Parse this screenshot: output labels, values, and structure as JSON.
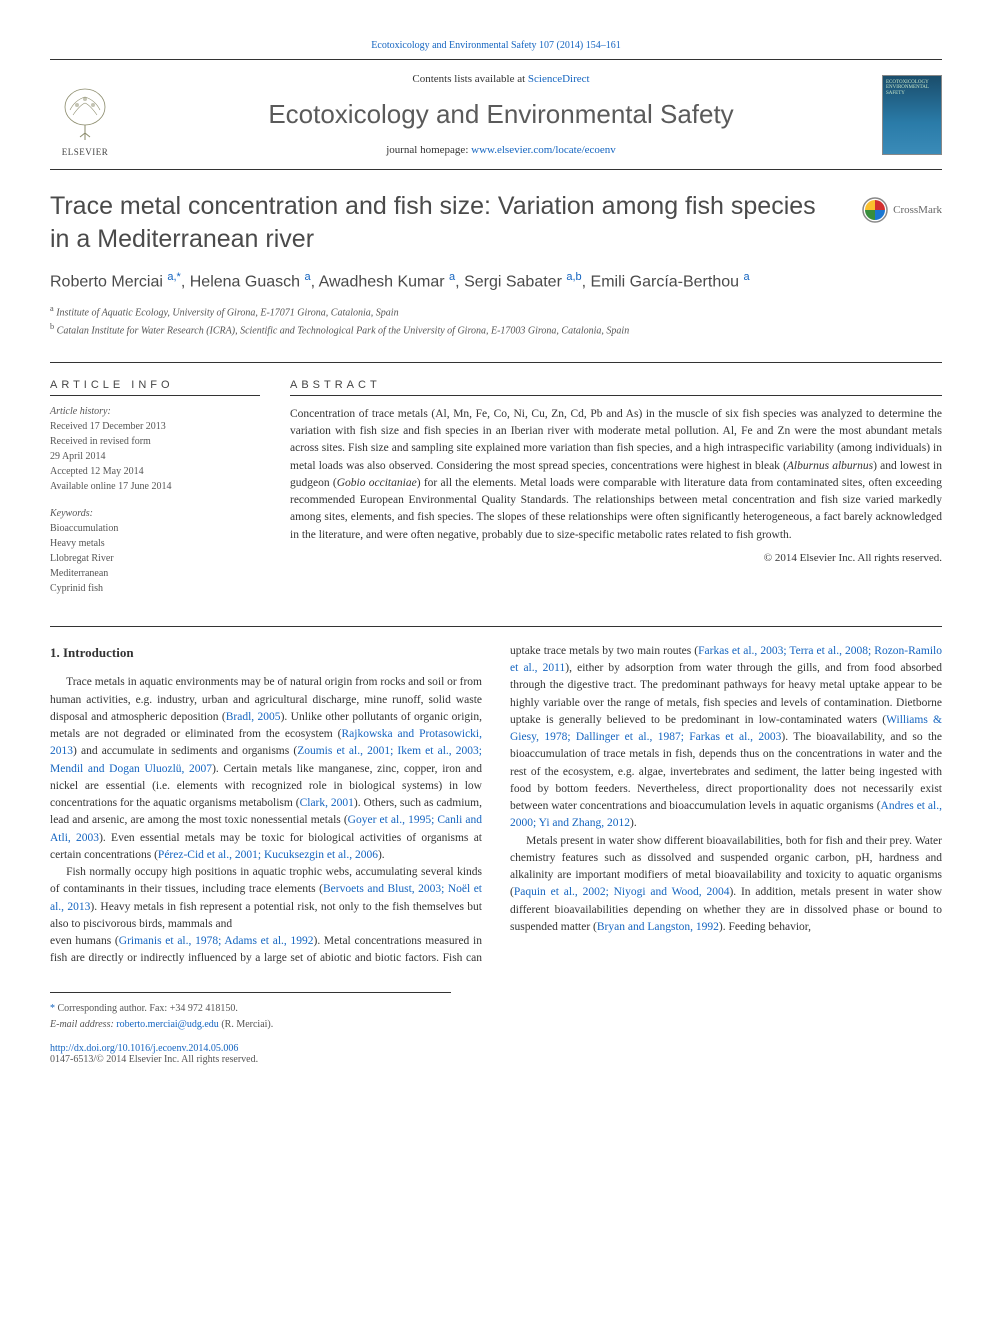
{
  "header": {
    "journal_ref": "Ecotoxicology and Environmental Safety 107 (2014) 154–161",
    "contents_prefix": "Contents lists available at ",
    "contents_link": "ScienceDirect",
    "journal_name": "Ecotoxicology and Environmental Safety",
    "homepage_prefix": "journal homepage: ",
    "homepage_link": "www.elsevier.com/locate/ecoenv",
    "publisher": "ELSEVIER",
    "cover_title": "ECOTOXICOLOGY ENVIRONMENTAL SAFETY",
    "crossmark": "CrossMark"
  },
  "article": {
    "title": "Trace metal concentration and fish size: Variation among fish species in a Mediterranean river",
    "authors_html": "Roberto Merciai <sup>a,*</sup>, Helena Guasch <sup>a</sup>, Awadhesh Kumar <sup>a</sup>, Sergi Sabater <sup>a,b</sup>, Emili García-Berthou <sup>a</sup>",
    "affiliations": [
      "a Institute of Aquatic Ecology, University of Girona, E-17071 Girona, Catalonia, Spain",
      "b Catalan Institute for Water Research (ICRA), Scientific and Technological Park of the University of Girona, E-17003 Girona, Catalonia, Spain"
    ]
  },
  "info": {
    "heading": "ARTICLE INFO",
    "history_label": "Article history:",
    "history": [
      "Received 17 December 2013",
      "Received in revised form",
      "29 April 2014",
      "Accepted 12 May 2014",
      "Available online 17 June 2014"
    ],
    "keywords_label": "Keywords:",
    "keywords": [
      "Bioaccumulation",
      "Heavy metals",
      "Llobregat River",
      "Mediterranean",
      "Cyprinid fish"
    ]
  },
  "abstract": {
    "heading": "ABSTRACT",
    "text": "Concentration of trace metals (Al, Mn, Fe, Co, Ni, Cu, Zn, Cd, Pb and As) in the muscle of six fish species was analyzed to determine the variation with fish size and fish species in an Iberian river with moderate metal pollution. Al, Fe and Zn were the most abundant metals across sites. Fish size and sampling site explained more variation than fish species, and a high intraspecific variability (among individuals) in metal loads was also observed. Considering the most spread species, concentrations were highest in bleak (Alburnus alburnus) and lowest in gudgeon (Gobio occitaniae) for all the elements. Metal loads were comparable with literature data from contaminated sites, often exceeding recommended European Environmental Quality Standards. The relationships between metal concentration and fish size varied markedly among sites, elements, and fish species. The slopes of these relationships were often significantly heterogeneous, a fact barely acknowledged in the literature, and were often negative, probably due to size-specific metabolic rates related to fish growth.",
    "copyright": "© 2014 Elsevier Inc. All rights reserved."
  },
  "body": {
    "section_heading": "1. Introduction",
    "p1": "Trace metals in aquatic environments may be of natural origin from rocks and soil or from human activities, e.g. industry, urban and agricultural discharge, mine runoff, solid waste disposal and atmospheric deposition (Bradl, 2005). Unlike other pollutants of organic origin, metals are not degraded or eliminated from the ecosystem (Rajkowska and Protasowicki, 2013) and accumulate in sediments and organisms (Zoumis et al., 2001; Ikem et al., 2003; Mendil and Dogan Uluozlü, 2007). Certain metals like manganese, zinc, copper, iron and nickel are essential (i.e. elements with recognized role in biological systems) in low concentrations for the aquatic organisms metabolism (Clark, 2001). Others, such as cadmium, lead and arsenic, are among the most toxic nonessential metals (Goyer et al., 1995; Canli and Atli, 2003). Even essential metals may be toxic for biological activities of organisms at certain concentrations (Pérez-Cid et al., 2001; Kucuksezgin et al., 2006).",
    "p2": "Fish normally occupy high positions in aquatic trophic webs, accumulating several kinds of contaminants in their tissues, including trace elements (Bervoets and Blust, 2003; Noël et al., 2013). Heavy metals in fish represent a potential risk, not only to the fish themselves but also to piscivorous birds, mammals and",
    "p3": "even humans (Grimanis et al., 1978; Adams et al., 1992). Metal concentrations measured in fish are directly or indirectly influenced by a large set of abiotic and biotic factors. Fish can uptake trace metals by two main routes (Farkas et al., 2003; Terra et al., 2008; Rozon-Ramilo et al., 2011), either by adsorption from water through the gills, and from food absorbed through the digestive tract. The predominant pathways for heavy metal uptake appear to be highly variable over the range of metals, fish species and levels of contamination. Dietborne uptake is generally believed to be predominant in low-contaminated waters (Williams & Giesy, 1978; Dallinger et al., 1987; Farkas et al., 2003). The bioavailability, and so the bioaccumulation of trace metals in fish, depends thus on the concentrations in water and the rest of the ecosystem, e.g. algae, invertebrates and sediment, the latter being ingested with food by bottom feeders. Nevertheless, direct proportionality does not necessarily exist between water concentrations and bioaccumulation levels in aquatic organisms (Andres et al., 2000; Yi and Zhang, 2012).",
    "p4": "Metals present in water show different bioavailabilities, both for fish and their prey. Water chemistry features such as dissolved and suspended organic carbon, pH, hardness and alkalinity are important modifiers of metal bioavailability and toxicity to aquatic organisms (Paquin et al., 2002; Niyogi and Wood, 2004). In addition, metals present in water show different bioavailabilities depending on whether they are in dissolved phase or bound to suspended matter (Bryan and Langston, 1992). Feeding behavior,"
  },
  "footnotes": {
    "corresponding": "* Corresponding author. Fax: +34 972 418150.",
    "email_label": "E-mail address: ",
    "email": "roberto.merciai@udg.edu",
    "email_name": " (R. Merciai).",
    "doi": "http://dx.doi.org/10.1016/j.ecoenv.2014.05.006",
    "issn": "0147-6513/© 2014 Elsevier Inc. All rights reserved."
  },
  "refs": {
    "bradl": "Bradl, 2005",
    "rajkowska": "Rajkowska and Protasowicki, 2013",
    "zoumis": "Zoumis et al., 2001; Ikem et al., 2003; Mendil and Dogan Uluozlü, 2007",
    "clark": "Clark, 2001",
    "goyer": "Goyer et al., 1995; Canli and Atli, 2003",
    "perez": "Pérez-Cid et al., 2001; Kucuksezgin et al., 2006",
    "bervoets": "Bervoets and Blust, 2003; Noël et al., 2013",
    "grimanis": "Grimanis et al., 1978; Adams et al., 1992",
    "farkas": "Farkas et al., 2003; Terra et al., 2008; Rozon-Ramilo et al., 2011",
    "williams": "Williams & Giesy, 1978; Dallinger et al., 1987; Farkas et al., 2003",
    "andres": "Andres et al., 2000; Yi and Zhang, 2012",
    "paquin": "Paquin et al., 2002; Niyogi and Wood, 2004",
    "bryan": "Bryan and Langston, 1992"
  },
  "colors": {
    "link": "#1565c0",
    "text": "#333333",
    "muted": "#555555",
    "heading": "#4a4a4a"
  }
}
